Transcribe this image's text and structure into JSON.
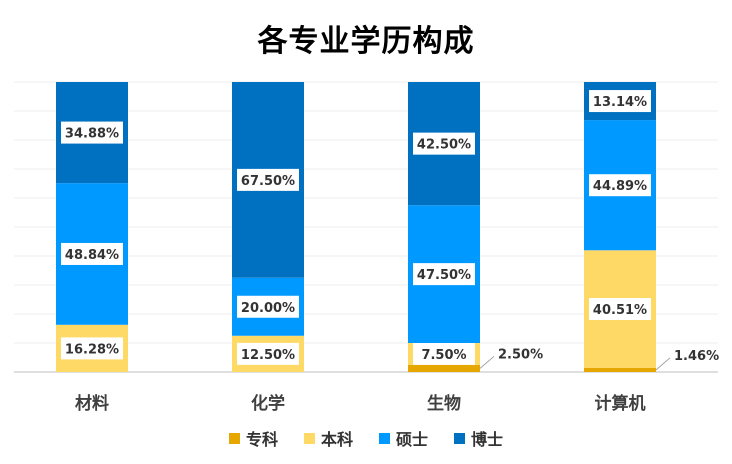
{
  "chart_data": {
    "type": "bar",
    "stacked": "percent",
    "title": "各专业学历构成",
    "categories": [
      "材料",
      "化学",
      "生物",
      "计算机"
    ],
    "series": [
      {
        "name": "专科",
        "color": "#E6A800",
        "values": [
          0,
          0,
          2.5,
          1.46
        ],
        "labels": [
          "",
          "",
          "2.50%",
          "1.46%"
        ]
      },
      {
        "name": "本科",
        "color": "#FFD966",
        "values": [
          16.28,
          12.5,
          7.5,
          40.51
        ],
        "labels": [
          "16.28%",
          "12.50%",
          "7.50%",
          "40.51%"
        ]
      },
      {
        "name": "硕士",
        "color": "#0099FF",
        "values": [
          48.84,
          20.0,
          47.5,
          44.89
        ],
        "labels": [
          "48.84%",
          "20.00%",
          "47.50%",
          "44.89%"
        ]
      },
      {
        "name": "博士",
        "color": "#0070C0",
        "values": [
          34.88,
          67.5,
          42.5,
          13.14
        ],
        "labels": [
          "34.88%",
          "67.50%",
          "42.50%",
          "13.14%"
        ]
      }
    ],
    "ylim": [
      0,
      100
    ],
    "grid": true,
    "legend": "bottom"
  }
}
